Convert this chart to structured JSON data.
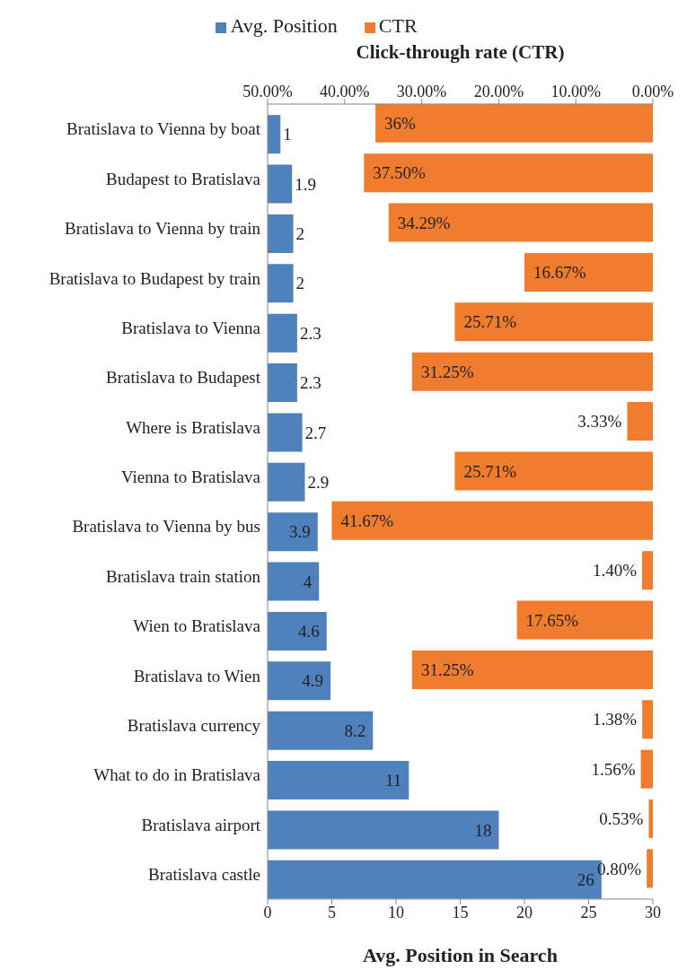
{
  "chart_data": {
    "type": "bar",
    "orientation": "horizontal",
    "xlabel": "Avg. Position in Search",
    "x2label": "Click-through rate (CTR)",
    "categories": [
      "Bratislava to Vienna by boat",
      "Budapest to Bratislava",
      "Bratislava to Vienna by train",
      "Bratislava to Budapest by train",
      "Bratislava to Vienna",
      "Bratislava to Budapest",
      "Where is Bratislava",
      "Vienna to Bratislava",
      "Bratislava to Vienna by bus",
      "Bratislava train station",
      "Wien to Bratislava",
      "Bratislava to Wien",
      "Bratislava currency",
      "What to do in Bratislava",
      "Bratislava airport",
      "Bratislava castle"
    ],
    "series": [
      {
        "name": "Avg. Position",
        "color": "#4f81bd",
        "values": [
          1,
          1.9,
          2,
          2,
          2.3,
          2.3,
          2.7,
          2.9,
          3.9,
          4,
          4.6,
          4.9,
          8.2,
          11,
          18,
          26
        ],
        "value_labels": [
          "1",
          "1.9",
          "2",
          "2",
          "2.3",
          "2.3",
          "2.7",
          "2.9",
          "3.9",
          "4",
          "4.6",
          "4.9",
          "8.2",
          "11",
          "18",
          "26"
        ]
      },
      {
        "name": "CTR",
        "color": "#f07d2e",
        "axis": "x2",
        "values": [
          36,
          37.5,
          34.29,
          16.67,
          25.71,
          31.25,
          3.33,
          25.71,
          41.67,
          1.4,
          17.65,
          31.25,
          1.38,
          1.56,
          0.53,
          0.8
        ],
        "value_labels": [
          "36%",
          "37.50%",
          "34.29%",
          "16.67%",
          "25.71%",
          "31.25%",
          "3.33%",
          "25.71%",
          "41.67%",
          "1.40%",
          "17.65%",
          "31.25%",
          "1.38%",
          "1.56%",
          "0.53%",
          "0.80%"
        ]
      }
    ],
    "xlim": [
      0,
      30
    ],
    "xticks": [
      0,
      5,
      10,
      15,
      20,
      25,
      30
    ],
    "x2lim": [
      50,
      0
    ],
    "x2ticks": [
      {
        "value": 50,
        "label": "50.00%"
      },
      {
        "value": 40,
        "label": "40.00%"
      },
      {
        "value": 30,
        "label": "30.00%"
      },
      {
        "value": 20,
        "label": "20.00%"
      },
      {
        "value": 10,
        "label": "10.00%"
      },
      {
        "value": 0,
        "label": "0.00%"
      }
    ],
    "grid": false,
    "legend": "top"
  }
}
